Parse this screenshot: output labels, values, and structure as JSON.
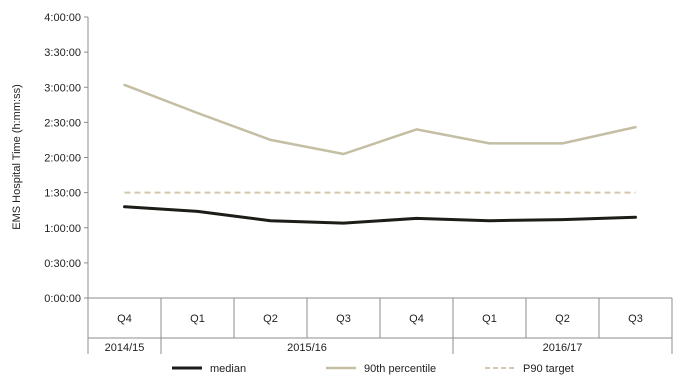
{
  "chart_data": {
    "type": "line",
    "ylabel": "EMS Hospital Time (h:mm:ss)",
    "y_unit": "minutes",
    "ylim": [
      0,
      240
    ],
    "yticks": [
      0,
      30,
      60,
      90,
      120,
      150,
      180,
      210,
      240
    ],
    "ytick_labels": [
      "0:00:00",
      "0:30:00",
      "1:00:00",
      "1:30:00",
      "2:00:00",
      "2:30:00",
      "3:00:00",
      "3:30:00",
      "4:00:00"
    ],
    "categories": [
      "Q4",
      "Q1",
      "Q2",
      "Q3",
      "Q4",
      "Q1",
      "Q2",
      "Q3"
    ],
    "groups": [
      {
        "label": "2014/15",
        "count": 1
      },
      {
        "label": "2015/16",
        "count": 4
      },
      {
        "label": "2016/17",
        "count": 3
      }
    ],
    "series": [
      {
        "name": "median",
        "color": "#1c1c18",
        "dash": "solid",
        "values": [
          78,
          74,
          66,
          64,
          68,
          66,
          67,
          69
        ]
      },
      {
        "name": "90th percentile",
        "color": "#c4bfa4",
        "dash": "solid",
        "values": [
          182,
          158,
          135,
          123,
          144,
          132,
          132,
          146
        ]
      },
      {
        "name": "P90 target",
        "color": "#d5c7ab",
        "dash": "dashed",
        "values": [
          90,
          90,
          90,
          90,
          90,
          90,
          90,
          90
        ]
      }
    ],
    "grid": false,
    "legend_position": "bottom"
  }
}
